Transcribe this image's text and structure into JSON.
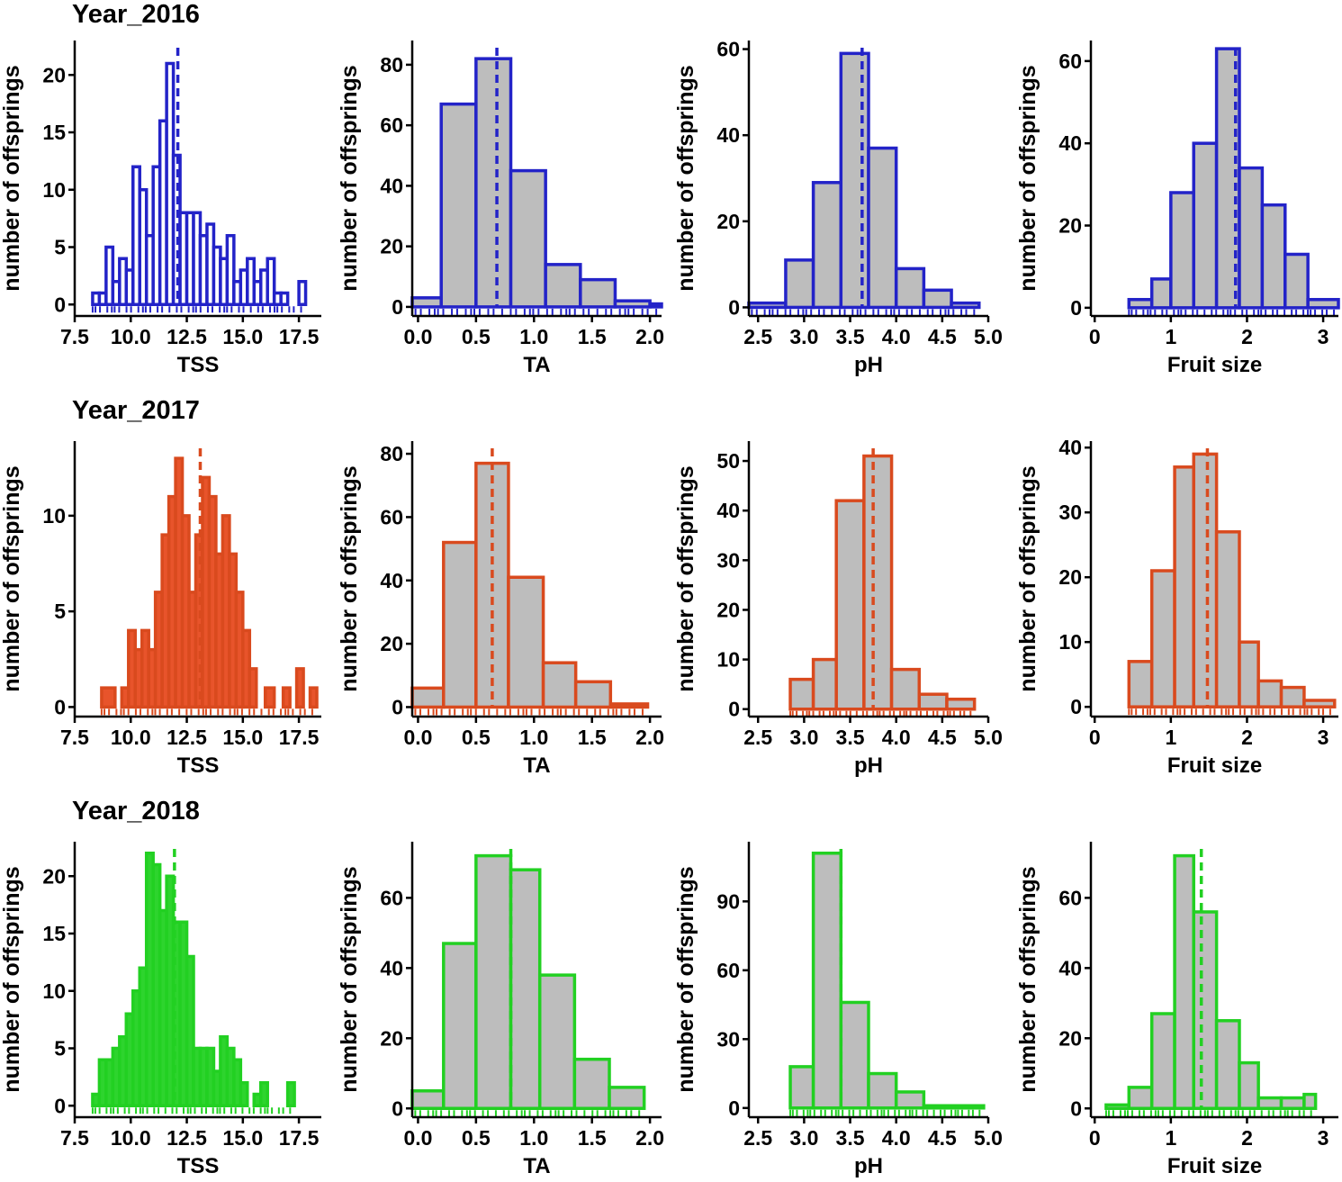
{
  "figure": {
    "year_titles": [
      "Year_2016",
      "Year_2017",
      "Year_2018"
    ]
  },
  "chart_data": [
    {
      "id": "2016-TSS",
      "type": "histogram",
      "year": "Year_2016",
      "xlabel": "TSS",
      "ylabel": "number of offsprings",
      "color": "#2323c8",
      "fill": "#ffffff",
      "xlim": [
        7.5,
        18.5
      ],
      "xticks": [
        7.5,
        10.0,
        12.5,
        15.0,
        17.5
      ],
      "ylim": [
        -1,
        23
      ],
      "yticks": [
        0,
        5,
        10,
        15,
        20
      ],
      "mean": 12.1,
      "bins": [
        [
          8.3,
          8.6,
          1
        ],
        [
          8.6,
          8.9,
          1
        ],
        [
          8.9,
          9.2,
          5
        ],
        [
          9.2,
          9.5,
          2
        ],
        [
          9.5,
          9.8,
          4
        ],
        [
          9.8,
          10.1,
          3
        ],
        [
          10.1,
          10.4,
          12
        ],
        [
          10.4,
          10.7,
          10
        ],
        [
          10.7,
          11.0,
          6
        ],
        [
          11.0,
          11.3,
          12
        ],
        [
          11.3,
          11.6,
          16
        ],
        [
          11.6,
          11.9,
          21
        ],
        [
          11.9,
          12.2,
          13
        ],
        [
          12.2,
          12.5,
          8
        ],
        [
          12.5,
          12.8,
          8
        ],
        [
          12.8,
          13.1,
          8
        ],
        [
          13.1,
          13.4,
          6
        ],
        [
          13.4,
          13.7,
          7
        ],
        [
          13.7,
          14.0,
          5
        ],
        [
          14.0,
          14.3,
          4
        ],
        [
          14.3,
          14.6,
          6
        ],
        [
          14.6,
          14.9,
          2
        ],
        [
          14.9,
          15.2,
          3
        ],
        [
          15.2,
          15.5,
          4
        ],
        [
          15.5,
          15.8,
          2
        ],
        [
          15.8,
          16.1,
          3
        ],
        [
          16.1,
          16.4,
          4
        ],
        [
          16.4,
          16.7,
          1
        ],
        [
          16.7,
          17.0,
          1
        ],
        [
          17.5,
          17.8,
          2
        ]
      ]
    },
    {
      "id": "2016-TA",
      "type": "histogram",
      "year": "Year_2016",
      "xlabel": "TA",
      "ylabel": "number of offsprings",
      "color": "#2323c8",
      "fill": "#bdbdbd",
      "xlim": [
        -0.05,
        2.1
      ],
      "xticks": [
        0.0,
        0.5,
        1.0,
        1.5,
        2.0
      ],
      "ylim": [
        -3,
        88
      ],
      "yticks": [
        0,
        20,
        40,
        60,
        80
      ],
      "mean": 0.68,
      "bins": [
        [
          -0.05,
          0.2,
          3
        ],
        [
          0.2,
          0.5,
          67
        ],
        [
          0.5,
          0.8,
          82
        ],
        [
          0.8,
          1.1,
          45
        ],
        [
          1.1,
          1.4,
          14
        ],
        [
          1.4,
          1.7,
          9
        ],
        [
          1.7,
          2.0,
          2
        ],
        [
          2.0,
          2.1,
          1
        ]
      ]
    },
    {
      "id": "2016-pH",
      "type": "histogram",
      "year": "Year_2016",
      "xlabel": "pH",
      "ylabel": "number of offsprings",
      "color": "#2323c8",
      "fill": "#bdbdbd",
      "xlim": [
        2.4,
        5.0
      ],
      "xticks": [
        2.5,
        3.0,
        3.5,
        4.0,
        4.5,
        5.0
      ],
      "ylim": [
        -2,
        62
      ],
      "yticks": [
        0,
        20,
        40,
        60
      ],
      "mean": 3.63,
      "bins": [
        [
          2.4,
          2.8,
          1
        ],
        [
          2.8,
          3.1,
          11
        ],
        [
          3.1,
          3.4,
          29
        ],
        [
          3.4,
          3.7,
          59
        ],
        [
          3.7,
          4.0,
          37
        ],
        [
          4.0,
          4.3,
          9
        ],
        [
          4.3,
          4.6,
          4
        ],
        [
          4.6,
          4.9,
          1
        ]
      ]
    },
    {
      "id": "2016-Fruit size",
      "type": "histogram",
      "year": "Year_2016",
      "xlabel": "Fruit size",
      "ylabel": "number of offsprings",
      "color": "#2323c8",
      "fill": "#bdbdbd",
      "xlim": [
        -0.05,
        3.2
      ],
      "xticks": [
        0,
        1,
        2,
        3
      ],
      "ylim": [
        -2,
        65
      ],
      "yticks": [
        0,
        20,
        40,
        60
      ],
      "mean": 1.85,
      "bins": [
        [
          0.45,
          0.75,
          2
        ],
        [
          0.75,
          1.0,
          7
        ],
        [
          1.0,
          1.3,
          28
        ],
        [
          1.3,
          1.6,
          40
        ],
        [
          1.6,
          1.9,
          63
        ],
        [
          1.9,
          2.2,
          34
        ],
        [
          2.2,
          2.5,
          25
        ],
        [
          2.5,
          2.8,
          13
        ],
        [
          2.8,
          3.2,
          2
        ]
      ]
    },
    {
      "id": "2017-TSS",
      "type": "histogram",
      "year": "Year_2017",
      "xlabel": "TSS",
      "ylabel": "number of offsprings",
      "color": "#d94a1e",
      "fill": "#e8542b",
      "xlim": [
        7.5,
        18.5
      ],
      "xticks": [
        7.5,
        10.0,
        12.5,
        15.0,
        17.5
      ],
      "ylim": [
        -0.5,
        13.9
      ],
      "yticks": [
        0,
        5,
        10
      ],
      "mean": 13.1,
      "bins": [
        [
          7.5,
          8.7,
          0
        ],
        [
          8.7,
          9.3,
          1
        ],
        [
          9.3,
          9.6,
          0
        ],
        [
          9.6,
          9.9,
          1
        ],
        [
          9.9,
          10.2,
          4
        ],
        [
          10.2,
          10.5,
          3
        ],
        [
          10.5,
          10.8,
          4
        ],
        [
          10.8,
          11.1,
          3
        ],
        [
          11.1,
          11.4,
          6
        ],
        [
          11.4,
          11.7,
          9
        ],
        [
          11.7,
          12.0,
          11
        ],
        [
          12.0,
          12.3,
          13
        ],
        [
          12.3,
          12.6,
          10
        ],
        [
          12.6,
          12.9,
          6
        ],
        [
          12.9,
          13.2,
          9
        ],
        [
          13.2,
          13.5,
          12
        ],
        [
          13.5,
          13.8,
          11
        ],
        [
          13.8,
          14.1,
          8
        ],
        [
          14.1,
          14.4,
          10
        ],
        [
          14.4,
          14.7,
          8
        ],
        [
          14.7,
          15.0,
          6
        ],
        [
          15.0,
          15.3,
          4
        ],
        [
          15.3,
          15.6,
          2
        ],
        [
          15.6,
          15.9,
          0
        ],
        [
          16.0,
          16.4,
          1
        ],
        [
          16.4,
          16.8,
          0
        ],
        [
          16.8,
          17.1,
          1
        ],
        [
          17.1,
          17.4,
          0
        ],
        [
          17.4,
          17.7,
          2
        ],
        [
          17.7,
          18.0,
          0
        ],
        [
          18.0,
          18.3,
          1
        ]
      ]
    },
    {
      "id": "2017-TA",
      "type": "histogram",
      "year": "Year_2017",
      "xlabel": "TA",
      "ylabel": "number of offsprings",
      "color": "#d94a1e",
      "fill": "#bdbdbd",
      "xlim": [
        -0.05,
        2.1
      ],
      "xticks": [
        0.0,
        0.5,
        1.0,
        1.5,
        2.0
      ],
      "ylim": [
        -3,
        84
      ],
      "yticks": [
        0,
        20,
        40,
        60,
        80
      ],
      "mean": 0.64,
      "bins": [
        [
          -0.05,
          0.22,
          6
        ],
        [
          0.22,
          0.5,
          52
        ],
        [
          0.5,
          0.78,
          77
        ],
        [
          0.78,
          1.08,
          41
        ],
        [
          1.08,
          1.36,
          14
        ],
        [
          1.36,
          1.66,
          8
        ],
        [
          1.66,
          1.98,
          1
        ]
      ]
    },
    {
      "id": "2017-pH",
      "type": "histogram",
      "year": "Year_2017",
      "xlabel": "pH",
      "ylabel": "number of offsprings",
      "color": "#d94a1e",
      "fill": "#bdbdbd",
      "xlim": [
        2.4,
        5.0
      ],
      "xticks": [
        2.5,
        3.0,
        3.5,
        4.0,
        4.5,
        5.0
      ],
      "ylim": [
        -1.5,
        54
      ],
      "yticks": [
        0,
        10,
        20,
        30,
        40,
        50
      ],
      "mean": 3.75,
      "bins": [
        [
          2.85,
          3.1,
          6
        ],
        [
          3.1,
          3.35,
          10
        ],
        [
          3.35,
          3.65,
          42
        ],
        [
          3.65,
          3.95,
          51
        ],
        [
          3.95,
          4.25,
          8
        ],
        [
          4.25,
          4.55,
          3
        ],
        [
          4.55,
          4.85,
          2
        ]
      ]
    },
    {
      "id": "2017-Fruit size",
      "type": "histogram",
      "year": "Year_2017",
      "xlabel": "Fruit size",
      "ylabel": "number of offsprings",
      "color": "#d94a1e",
      "fill": "#bdbdbd",
      "xlim": [
        -0.05,
        3.2
      ],
      "xticks": [
        0,
        1,
        2,
        3
      ],
      "ylim": [
        -1.5,
        41
      ],
      "yticks": [
        0,
        10,
        20,
        30,
        40
      ],
      "mean": 1.48,
      "bins": [
        [
          0.45,
          0.75,
          7
        ],
        [
          0.75,
          1.05,
          21
        ],
        [
          1.05,
          1.3,
          37
        ],
        [
          1.3,
          1.6,
          39
        ],
        [
          1.6,
          1.9,
          27
        ],
        [
          1.9,
          2.15,
          10
        ],
        [
          2.15,
          2.45,
          4
        ],
        [
          2.45,
          2.75,
          3
        ],
        [
          2.75,
          3.15,
          1
        ]
      ]
    },
    {
      "id": "2018-TSS",
      "type": "histogram",
      "year": "Year_2018",
      "xlabel": "TSS",
      "ylabel": "number of offsprings",
      "color": "#22d022",
      "fill": "#2ed42e",
      "xlim": [
        7.5,
        18.5
      ],
      "xticks": [
        7.5,
        10.0,
        12.5,
        15.0,
        17.5
      ],
      "ylim": [
        -1,
        23
      ],
      "yticks": [
        0,
        5,
        10,
        15,
        20
      ],
      "mean": 11.95,
      "bins": [
        [
          8.3,
          8.6,
          1
        ],
        [
          8.6,
          8.9,
          4
        ],
        [
          8.9,
          9.2,
          4
        ],
        [
          9.2,
          9.5,
          5
        ],
        [
          9.5,
          9.8,
          6
        ],
        [
          9.8,
          10.1,
          8
        ],
        [
          10.1,
          10.4,
          10
        ],
        [
          10.4,
          10.7,
          12
        ],
        [
          10.7,
          11.0,
          22
        ],
        [
          11.0,
          11.3,
          21
        ],
        [
          11.3,
          11.6,
          17
        ],
        [
          11.6,
          11.9,
          20
        ],
        [
          11.9,
          12.2,
          16
        ],
        [
          12.2,
          12.5,
          16
        ],
        [
          12.5,
          12.8,
          13
        ],
        [
          12.8,
          13.1,
          5
        ],
        [
          13.1,
          13.4,
          5
        ],
        [
          13.4,
          13.7,
          5
        ],
        [
          13.7,
          14.0,
          3
        ],
        [
          14.0,
          14.3,
          6
        ],
        [
          14.3,
          14.6,
          5
        ],
        [
          14.6,
          14.9,
          4
        ],
        [
          14.9,
          15.2,
          2
        ],
        [
          15.2,
          15.5,
          0
        ],
        [
          15.5,
          15.8,
          1
        ],
        [
          15.8,
          16.1,
          2
        ],
        [
          16.1,
          16.4,
          0
        ],
        [
          16.4,
          16.7,
          0
        ],
        [
          16.7,
          17.0,
          0
        ],
        [
          17.0,
          17.3,
          2
        ]
      ]
    },
    {
      "id": "2018-TA",
      "type": "histogram",
      "year": "Year_2018",
      "xlabel": "TA",
      "ylabel": "number of offsprings",
      "color": "#22d022",
      "fill": "#bdbdbd",
      "xlim": [
        -0.05,
        2.1
      ],
      "xticks": [
        0.0,
        0.5,
        1.0,
        1.5,
        2.0
      ],
      "ylim": [
        -2.5,
        76
      ],
      "yticks": [
        0,
        20,
        40,
        60
      ],
      "mean": 0.8,
      "bins": [
        [
          -0.05,
          0.22,
          5
        ],
        [
          0.22,
          0.5,
          47
        ],
        [
          0.5,
          0.8,
          72
        ],
        [
          0.8,
          1.05,
          68
        ],
        [
          1.05,
          1.35,
          38
        ],
        [
          1.35,
          1.65,
          14
        ],
        [
          1.65,
          1.95,
          6
        ]
      ]
    },
    {
      "id": "2018-pH",
      "type": "histogram",
      "year": "Year_2018",
      "xlabel": "pH",
      "ylabel": "number of offsprings",
      "color": "#22d022",
      "fill": "#bdbdbd",
      "xlim": [
        2.4,
        5.0
      ],
      "xticks": [
        2.5,
        3.0,
        3.5,
        4.0,
        4.5,
        5.0
      ],
      "ylim": [
        -4,
        116
      ],
      "yticks": [
        0,
        30,
        60,
        90
      ],
      "mean": 3.4,
      "bins": [
        [
          2.85,
          3.1,
          18
        ],
        [
          3.1,
          3.4,
          111
        ],
        [
          3.4,
          3.7,
          46
        ],
        [
          3.7,
          4.0,
          15
        ],
        [
          4.0,
          4.3,
          7
        ],
        [
          4.3,
          4.95,
          1
        ]
      ]
    },
    {
      "id": "2018-Fruit size",
      "type": "histogram",
      "year": "Year_2018",
      "xlabel": "Fruit size",
      "ylabel": "number of offsprings",
      "color": "#22d022",
      "fill": "#bdbdbd",
      "xlim": [
        -0.05,
        3.2
      ],
      "xticks": [
        0,
        1,
        2,
        3
      ],
      "ylim": [
        -2.5,
        76
      ],
      "yticks": [
        0,
        20,
        40,
        60
      ],
      "mean": 1.4,
      "bins": [
        [
          0.15,
          0.45,
          1
        ],
        [
          0.45,
          0.75,
          6
        ],
        [
          0.75,
          1.05,
          27
        ],
        [
          1.05,
          1.3,
          72
        ],
        [
          1.3,
          1.6,
          56
        ],
        [
          1.6,
          1.9,
          25
        ],
        [
          1.9,
          2.15,
          13
        ],
        [
          2.15,
          2.45,
          3
        ],
        [
          2.45,
          2.75,
          3
        ],
        [
          2.75,
          2.9,
          4
        ]
      ]
    }
  ]
}
